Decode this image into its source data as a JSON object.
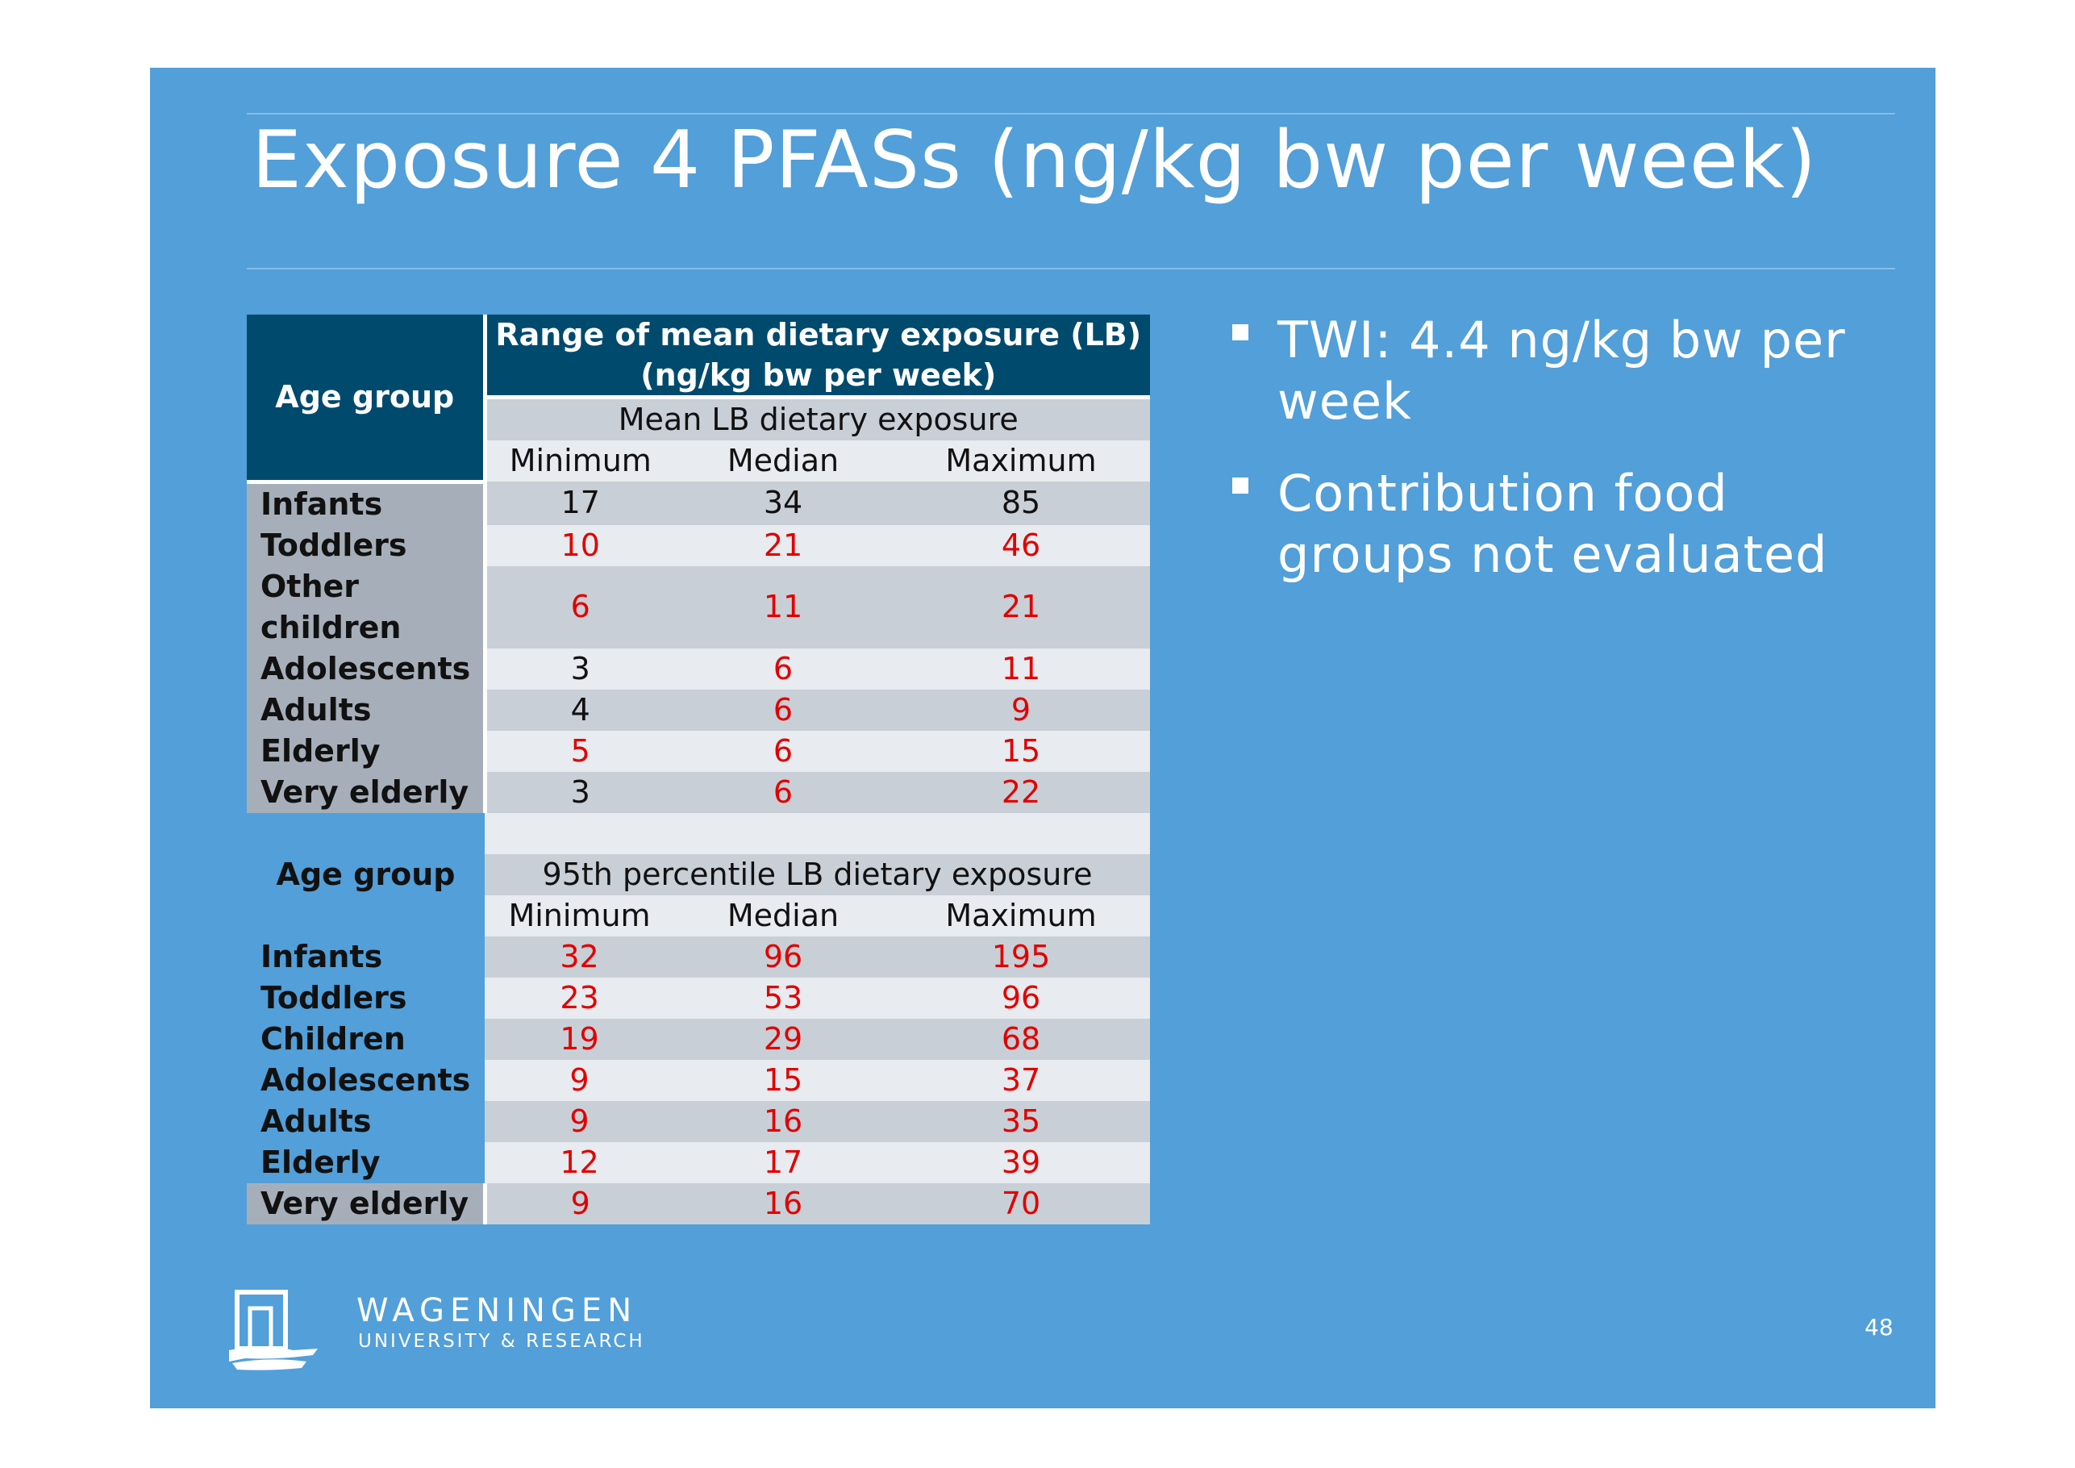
{
  "slide": {
    "title": "Exposure 4 PFASs (ng/kg bw per week)",
    "page_number": "48",
    "colors": {
      "background": "#529fd9",
      "header": "#004a6e",
      "highlight_red": "#e00000"
    }
  },
  "table": {
    "age_group_header": "Age group",
    "top_header": "Range of mean dietary exposure (LB) (ng/kg bw per week)",
    "section1": {
      "title": "Mean LB dietary exposure",
      "columns": [
        "Minimum",
        "Median",
        "Maximum"
      ],
      "rows": [
        {
          "label": "Infants",
          "values": [
            "17",
            "34",
            "85"
          ]
        },
        {
          "label": "Toddlers",
          "values": [
            "10",
            "21",
            "46"
          ]
        },
        {
          "label": "Other children",
          "values": [
            "6",
            "11",
            "21"
          ]
        },
        {
          "label": "Adolescents",
          "values": [
            "3",
            "6",
            "11"
          ]
        },
        {
          "label": "Adults",
          "values": [
            "4",
            "6",
            "9"
          ]
        },
        {
          "label": "Elderly",
          "values": [
            "5",
            "6",
            "15"
          ]
        },
        {
          "label": "Very elderly",
          "values": [
            "3",
            "6",
            "22"
          ]
        }
      ]
    },
    "section2": {
      "age_group_label": "Age group",
      "title": "95th percentile LB dietary exposure",
      "columns": [
        "Minimum",
        "Median",
        "Maximum"
      ],
      "rows": [
        {
          "label": "Infants",
          "values": [
            "32",
            "96",
            "195"
          ]
        },
        {
          "label": "Toddlers",
          "values": [
            "23",
            "53",
            "96"
          ]
        },
        {
          "label": "Children",
          "values": [
            "19",
            "29",
            "68"
          ]
        },
        {
          "label": "Adolescents",
          "values": [
            "9",
            "15",
            "37"
          ]
        },
        {
          "label": "Adults",
          "values": [
            "9",
            "16",
            "35"
          ]
        },
        {
          "label": "Elderly",
          "values": [
            "12",
            "17",
            "39"
          ]
        },
        {
          "label": "Very elderly",
          "values": [
            "9",
            "16",
            "70"
          ]
        }
      ]
    }
  },
  "bullets": [
    "TWI: 4.4 ng/kg bw per week",
    "Contribution food groups not evaluated"
  ],
  "logo": {
    "name": "WAGENINGEN",
    "subtitle": "UNIVERSITY & RESEARCH",
    "icon": "wur-gate-logo-icon"
  }
}
